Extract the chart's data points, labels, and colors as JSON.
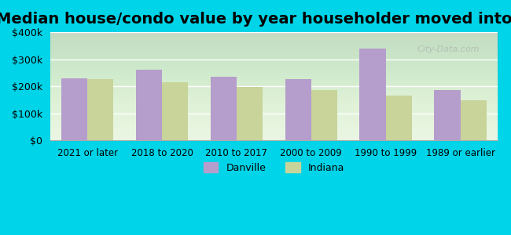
{
  "title": "Median house/condo value by year householder moved into unit",
  "categories": [
    "2021 or later",
    "2018 to 2020",
    "2010 to 2017",
    "2000 to 2009",
    "1990 to 1999",
    "1989 or earlier"
  ],
  "danville_values": [
    230000,
    262000,
    235000,
    228000,
    340000,
    185000
  ],
  "indiana_values": [
    228000,
    215000,
    197000,
    187000,
    167000,
    148000
  ],
  "danville_color": "#b59dcc",
  "indiana_color": "#c8d49a",
  "background_color": "#e8f5e0",
  "outer_background": "#00d4e8",
  "ylim": [
    0,
    400000
  ],
  "yticks": [
    0,
    100000,
    200000,
    300000,
    400000
  ],
  "ytick_labels": [
    "$0",
    "$100k",
    "$200k",
    "$300k",
    "$400k"
  ],
  "legend_labels": [
    "Danville",
    "Indiana"
  ],
  "title_fontsize": 14,
  "watermark_text": "City-Data.com"
}
